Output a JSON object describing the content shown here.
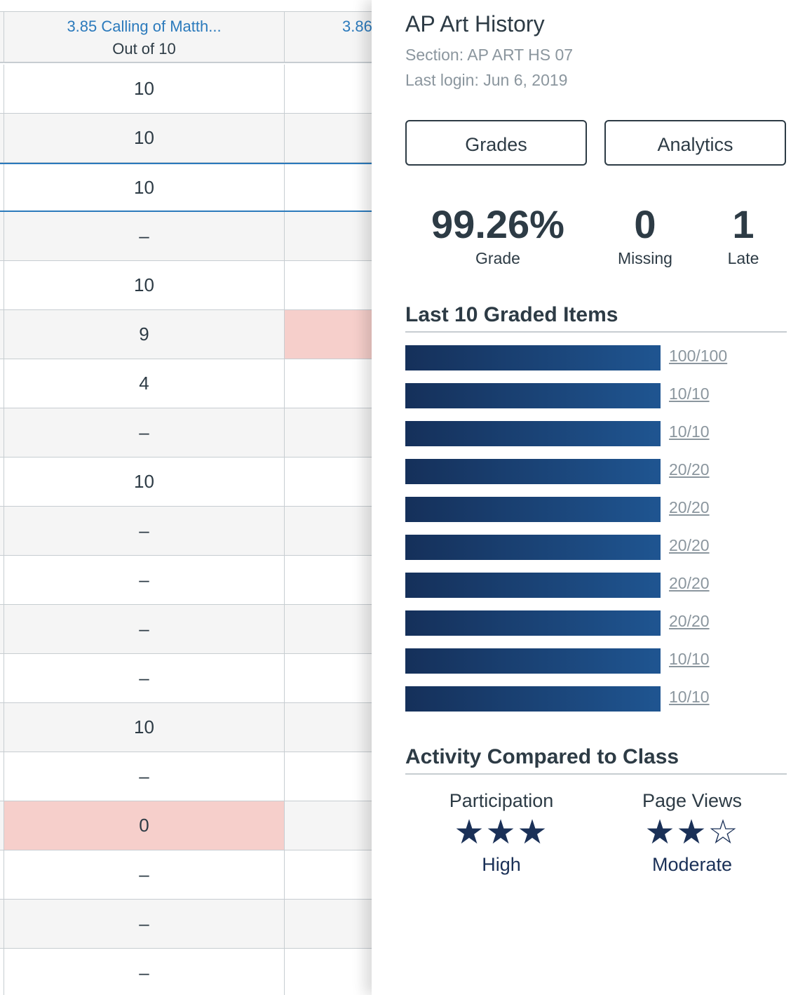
{
  "grid": {
    "columns": [
      {
        "title": "3.85 Calling of Matth...",
        "subtitle": "Out of 10"
      },
      {
        "title": "3.86",
        "subtitle": ""
      }
    ],
    "rows": [
      {
        "score": "10",
        "flag": false
      },
      {
        "score": "10",
        "flag": false
      },
      {
        "score": "10",
        "flag": false,
        "selected": true
      },
      {
        "score": "–",
        "flag": false
      },
      {
        "score": "10",
        "flag": false
      },
      {
        "score": "9",
        "flag": false,
        "next_flag": true
      },
      {
        "score": "4",
        "flag": false
      },
      {
        "score": "–",
        "flag": false
      },
      {
        "score": "10",
        "flag": false
      },
      {
        "score": "–",
        "flag": false
      },
      {
        "score": "–",
        "flag": false
      },
      {
        "score": "–",
        "flag": false
      },
      {
        "score": "–",
        "flag": false
      },
      {
        "score": "10",
        "flag": false
      },
      {
        "score": "–",
        "flag": false
      },
      {
        "score": "0",
        "flag": true
      },
      {
        "score": "–",
        "flag": false
      },
      {
        "score": "–",
        "flag": false
      },
      {
        "score": "–",
        "flag": false
      }
    ]
  },
  "tray": {
    "course_title": "AP Art History",
    "section": "Section: AP ART HS 07",
    "last_login": "Last login: Jun 6, 2019",
    "buttons": {
      "grades": "Grades",
      "analytics": "Analytics"
    },
    "stats": [
      {
        "value": "99.26%",
        "label": "Grade"
      },
      {
        "value": "0",
        "label": "Missing"
      },
      {
        "value": "1",
        "label": "Late"
      }
    ],
    "graded_title": "Last 10 Graded Items",
    "graded_items": [
      {
        "score": "100/100",
        "fraction": 1.0
      },
      {
        "score": "10/10",
        "fraction": 1.0
      },
      {
        "score": "10/10",
        "fraction": 1.0
      },
      {
        "score": "20/20",
        "fraction": 1.0
      },
      {
        "score": "20/20",
        "fraction": 1.0
      },
      {
        "score": "20/20",
        "fraction": 1.0
      },
      {
        "score": "20/20",
        "fraction": 1.0
      },
      {
        "score": "20/20",
        "fraction": 1.0
      },
      {
        "score": "10/10",
        "fraction": 1.0
      },
      {
        "score": "10/10",
        "fraction": 1.0
      }
    ],
    "activity_title": "Activity Compared to Class",
    "activity": [
      {
        "label": "Participation",
        "level": "High",
        "stars_filled": 3,
        "stars_total": 3
      },
      {
        "label": "Page Views",
        "level": "Moderate",
        "stars_filled": 2,
        "stars_total": 3
      }
    ],
    "colors": {
      "bar": "#1a3a66",
      "flag": "#f6cfcb",
      "link": "#2b7abc"
    }
  }
}
